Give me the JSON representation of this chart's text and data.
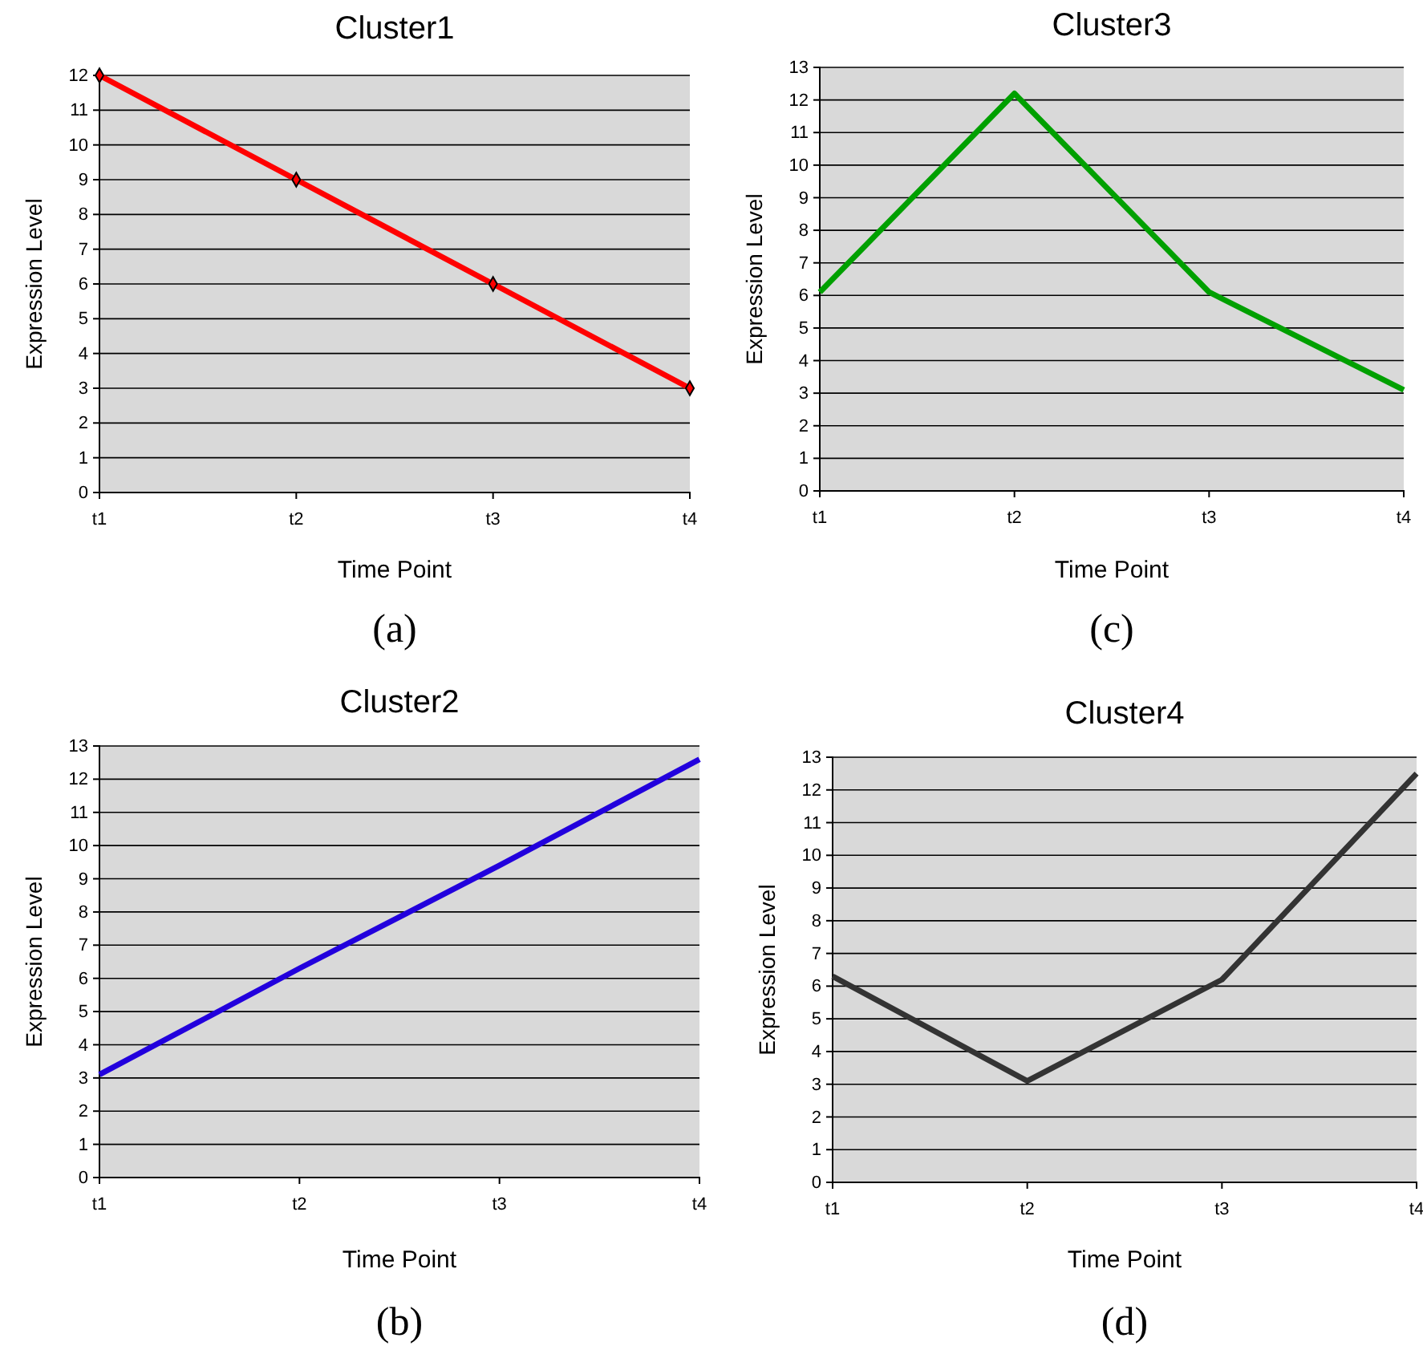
{
  "chart_data": [
    {
      "type": "line",
      "title": "Cluster1",
      "xlabel": "Time Point",
      "ylabel": "Expression Level",
      "categories": [
        "t1",
        "t2",
        "t3",
        "t4"
      ],
      "series": [
        {
          "color": "#ff0000",
          "values": [
            12,
            9,
            6,
            3
          ]
        }
      ],
      "ylim": [
        0,
        12
      ],
      "yticks": [
        0,
        1,
        2,
        3,
        4,
        5,
        6,
        7,
        8,
        9,
        10,
        11,
        12
      ],
      "grid": "y",
      "marker": "diamond",
      "annotations": [
        "(a)"
      ]
    },
    {
      "type": "line",
      "title": "Cluster3",
      "xlabel": "Time Point",
      "ylabel": "Expression Level",
      "categories": [
        "t1",
        "t2",
        "t3",
        "t4"
      ],
      "series": [
        {
          "color": "#00a000",
          "values": [
            6.1,
            12.2,
            6.1,
            3.1
          ]
        }
      ],
      "ylim": [
        0,
        13
      ],
      "yticks": [
        0,
        1,
        2,
        3,
        4,
        5,
        6,
        7,
        8,
        9,
        10,
        11,
        12,
        13
      ],
      "grid": "y",
      "annotations": [
        "(c)"
      ]
    },
    {
      "type": "line",
      "title": "Cluster2",
      "xlabel": "Time Point",
      "ylabel": "Expression Level",
      "categories": [
        "t1",
        "t2",
        "t3",
        "t4"
      ],
      "series": [
        {
          "color": "#2200dd",
          "values": [
            3.1,
            6.3,
            9.4,
            12.6
          ]
        }
      ],
      "ylim": [
        0,
        13
      ],
      "yticks": [
        0,
        1,
        2,
        3,
        4,
        5,
        6,
        7,
        8,
        9,
        10,
        11,
        12,
        13
      ],
      "grid": "y",
      "annotations": [
        "(b)"
      ]
    },
    {
      "type": "line",
      "title": "Cluster4",
      "xlabel": "Time Point",
      "ylabel": "Expression Level",
      "categories": [
        "t1",
        "t2",
        "t3",
        "t4"
      ],
      "series": [
        {
          "color": "#333333",
          "values": [
            6.3,
            3.1,
            6.2,
            12.5
          ]
        }
      ],
      "ylim": [
        0,
        13
      ],
      "yticks": [
        0,
        1,
        2,
        3,
        4,
        5,
        6,
        7,
        8,
        9,
        10,
        11,
        12,
        13
      ],
      "grid": "y",
      "annotations": [
        "(d)"
      ]
    }
  ]
}
